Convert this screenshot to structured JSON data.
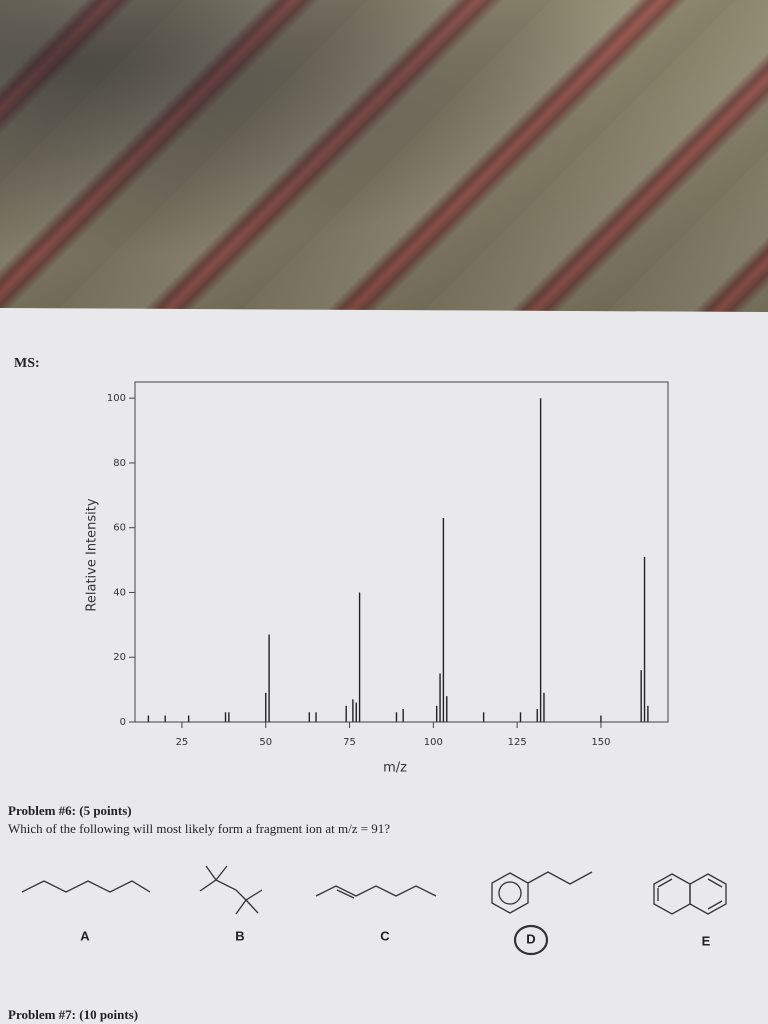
{
  "ms_label": "MS:",
  "chart_data": {
    "type": "bar",
    "x_label": "m/z",
    "y_label": "Relative Intensity",
    "x": [
      15,
      20,
      27,
      38,
      39,
      50,
      51,
      63,
      65,
      74,
      76,
      77,
      78,
      89,
      91,
      101,
      102,
      103,
      104,
      115,
      126,
      131,
      132,
      133,
      150,
      162,
      163,
      164
    ],
    "values": [
      2,
      2,
      2,
      3,
      3,
      9,
      27,
      3,
      3,
      5,
      7,
      6,
      40,
      3,
      4,
      5,
      15,
      63,
      8,
      3,
      3,
      4,
      100,
      9,
      2,
      16,
      51,
      5
    ],
    "color": "#222222",
    "xlim": [
      11,
      170
    ],
    "ylim": [
      0,
      105
    ],
    "xticks": [
      25,
      50,
      75,
      100,
      125,
      150
    ],
    "yticks": [
      0,
      20,
      40,
      60,
      80,
      100
    ]
  },
  "problem6": {
    "title": "Problem #6: (5 points)",
    "question": "Which of the following will most likely form a fragment ion at m/z = 91?",
    "options": [
      "A",
      "B",
      "C",
      "D",
      "E"
    ]
  },
  "problem7": {
    "title": "Problem #7: (10 points)"
  }
}
